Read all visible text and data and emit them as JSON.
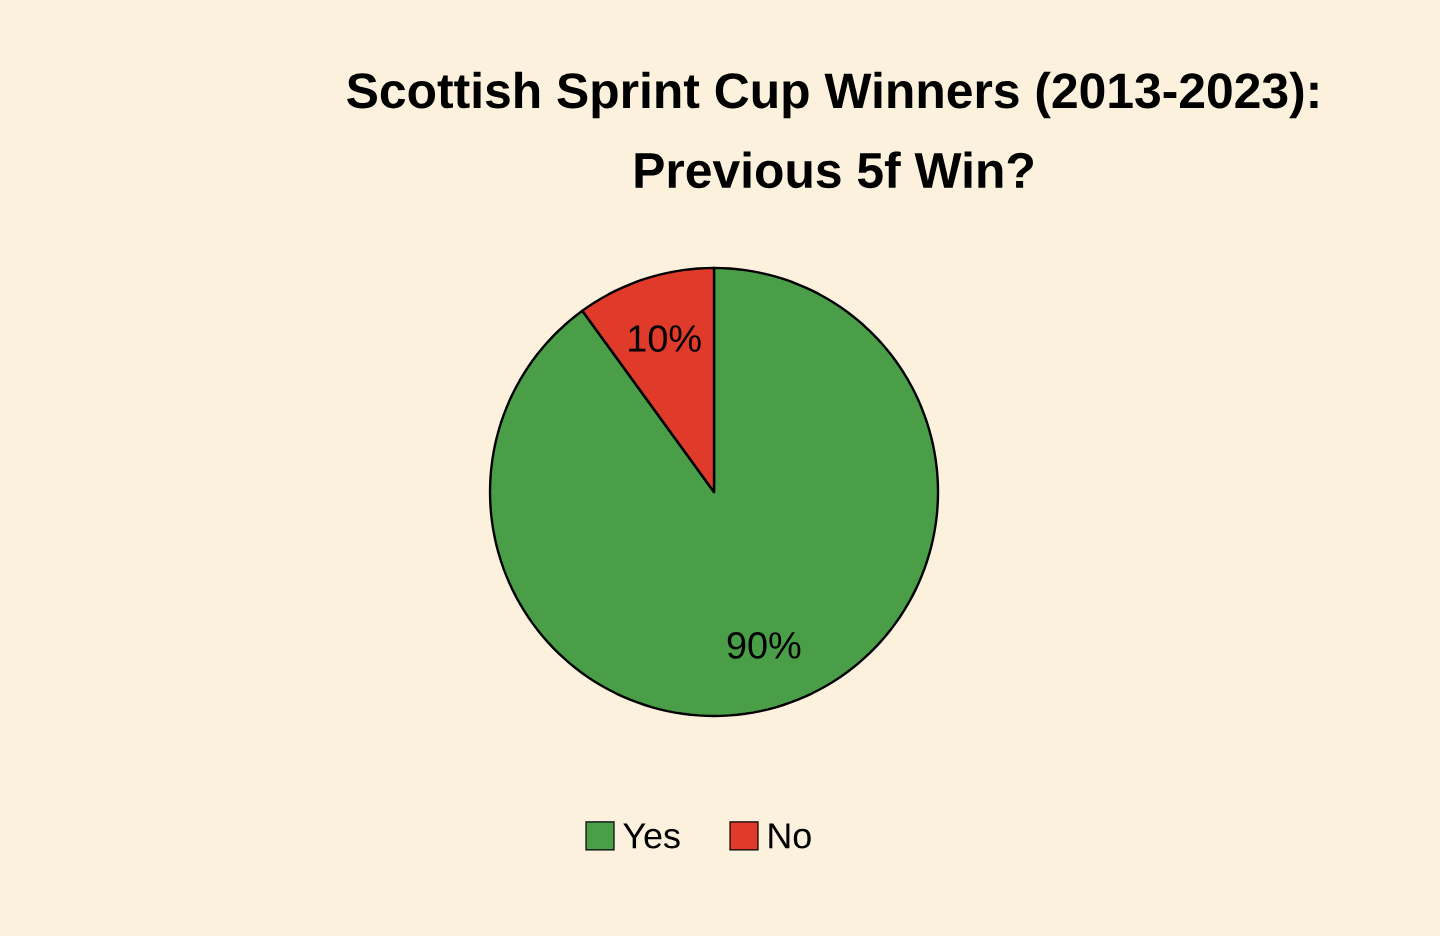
{
  "chart_data": {
    "type": "pie",
    "title": "Scottish Sprint Cup Winners (2013-2023):\nPrevious 5f Win?",
    "categories": [
      "Yes",
      "No"
    ],
    "values": [
      90,
      10
    ],
    "colors": [
      "#4a9e47",
      "#e03a2a"
    ],
    "value_labels": [
      "90%",
      "10%"
    ],
    "legend": "bottom"
  }
}
